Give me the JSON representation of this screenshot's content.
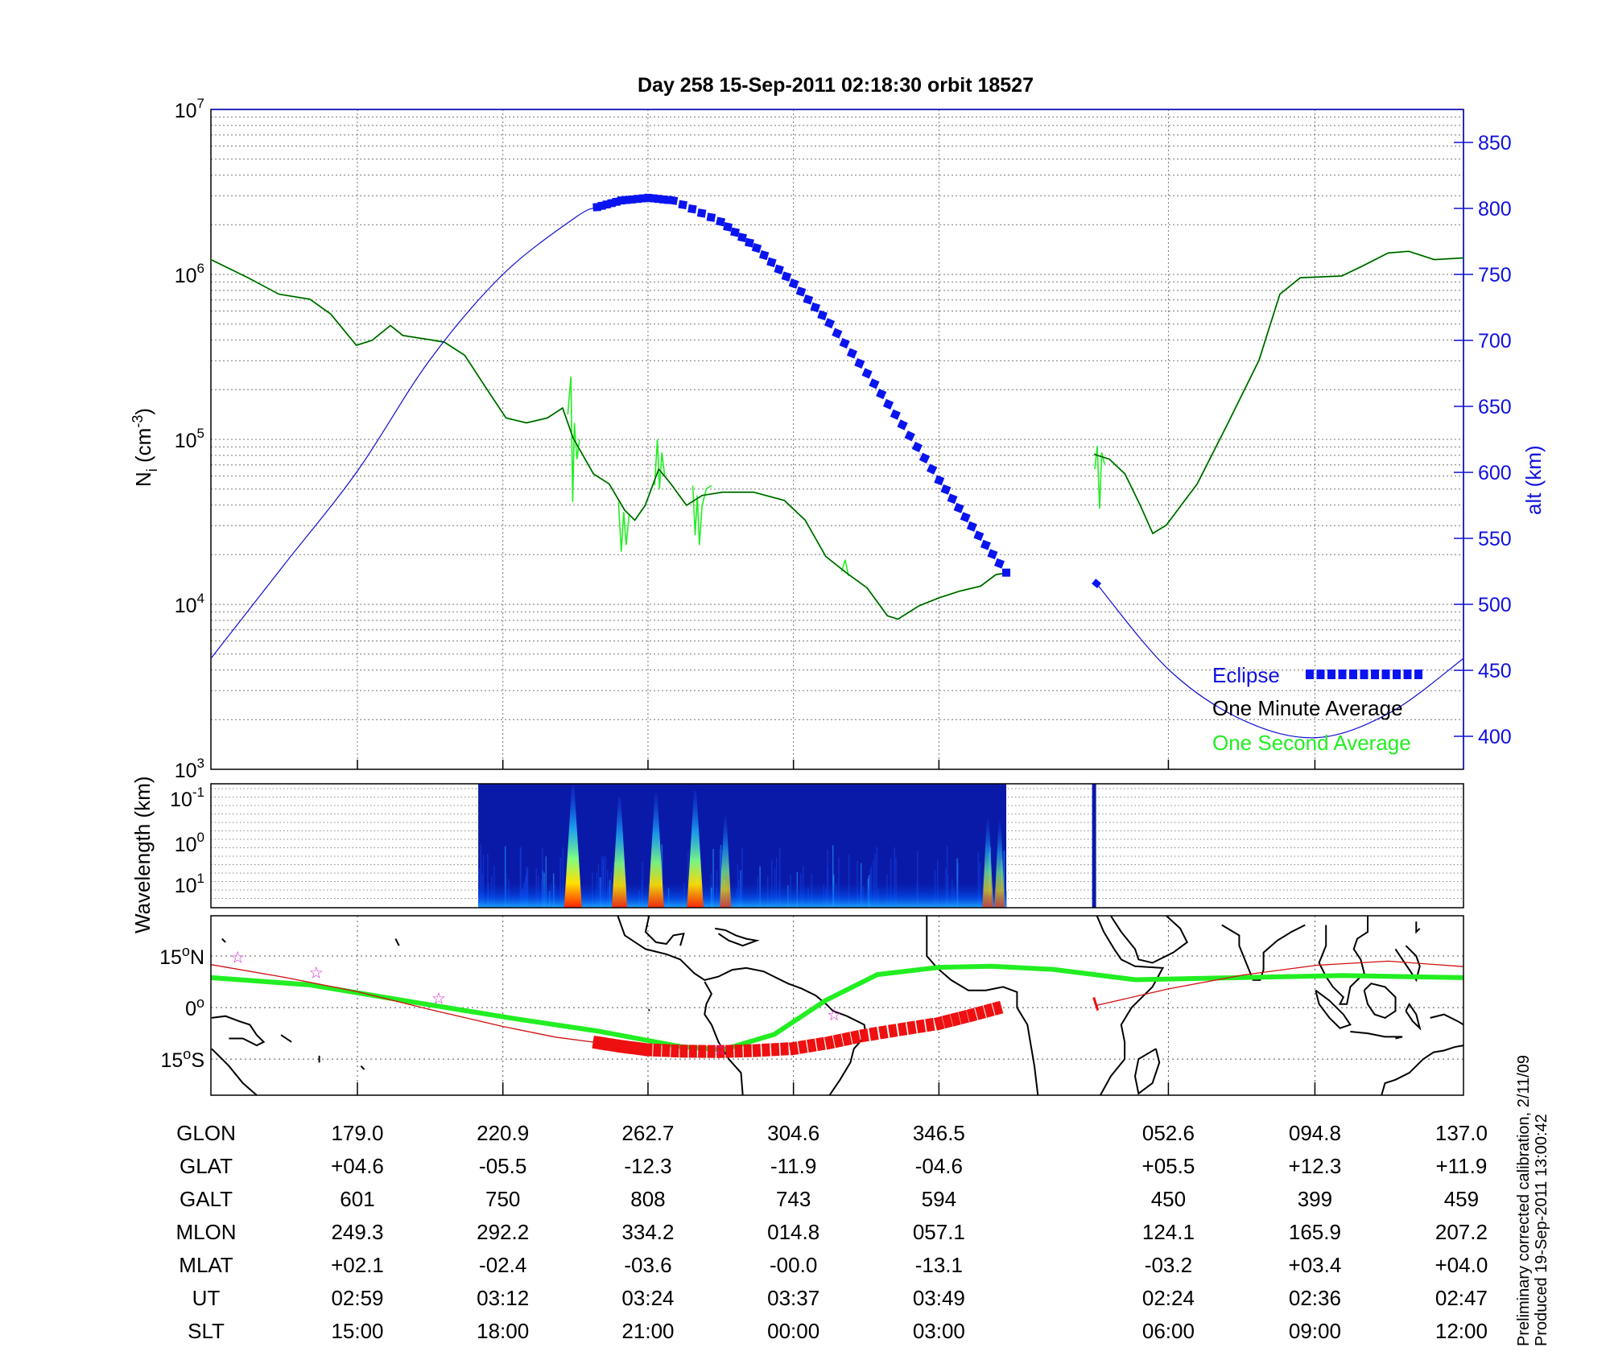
{
  "chart_data": {
    "type": "line",
    "title": "Day 258  15-Sep-2011 02:18:30   orbit 18527",
    "x_axis": {
      "quantity": "geographic longitude (unwrapped, deg)",
      "range": [
        136.8,
        497.6
      ]
    },
    "panels": {
      "density": {
        "ylabel": "N",
        "ylabel_sub": "i",
        "ylabel_unit": "(cm",
        "ylabel_exp": "-3",
        "ylabel_close": ")",
        "yscale": "log10",
        "ylim_log10": [
          3,
          7
        ],
        "ytick_labels": [
          {
            "base": "10",
            "exp": "3"
          },
          {
            "base": "10",
            "exp": "4"
          },
          {
            "base": "10",
            "exp": "5"
          },
          {
            "base": "10",
            "exp": "6"
          },
          {
            "base": "10",
            "exp": "7"
          }
        ],
        "right_ylabel": "alt (km)",
        "right_ylim": [
          375,
          875
        ],
        "right_ticks": [
          "400",
          "450",
          "500",
          "550",
          "600",
          "650",
          "700",
          "750",
          "800",
          "850"
        ],
        "series": [
          {
            "name": "One Minute Average",
            "color": "#000000",
            "segments": [
              [
                [
                  136.8,
                  6.09
                ],
                [
                  147.5,
                  5.98
                ],
                [
                  156.4,
                  5.88
                ],
                [
                  165.3,
                  5.85
                ],
                [
                  171.3,
                  5.76
                ],
                [
                  178.7,
                  5.57
                ],
                [
                  183.2,
                  5.6
                ],
                [
                  188.5,
                  5.69
                ],
                [
                  192.1,
                  5.63
                ],
                [
                  198.0,
                  5.61
                ],
                [
                  204.0,
                  5.59
                ],
                [
                  209.9,
                  5.51
                ],
                [
                  215.8,
                  5.32
                ],
                [
                  221.8,
                  5.13
                ],
                [
                  227.7,
                  5.1
                ],
                [
                  233.7,
                  5.13
                ],
                [
                  238.1,
                  5.19
                ],
                [
                  241.1,
                  5.01
                ],
                [
                  247.0,
                  4.79
                ],
                [
                  251.5,
                  4.73
                ],
                [
                  256.0,
                  4.57
                ],
                [
                  258.9,
                  4.51
                ],
                [
                  261.9,
                  4.6
                ],
                [
                  265.8,
                  4.82
                ],
                [
                  269.3,
                  4.73
                ],
                [
                  273.8,
                  4.6
                ],
                [
                  278.3,
                  4.66
                ],
                [
                  284.2,
                  4.68
                ],
                [
                  293.1,
                  4.68
                ],
                [
                  302.0,
                  4.63
                ],
                [
                  308.0,
                  4.51
                ],
                [
                  313.9,
                  4.29
                ],
                [
                  319.9,
                  4.19
                ],
                [
                  325.8,
                  4.1
                ],
                [
                  331.7,
                  3.93
                ],
                [
                  334.7,
                  3.91
                ],
                [
                  340.7,
                  3.99
                ],
                [
                  346.6,
                  4.04
                ],
                [
                  352.5,
                  4.08
                ],
                [
                  358.5,
                  4.11
                ],
                [
                  362.9,
                  4.18
                ],
                [
                  365.9,
                  4.19
                ]
              ],
              [
                [
                  391.2,
                  4.91
                ],
                [
                  395.6,
                  4.88
                ],
                [
                  400.1,
                  4.79
                ],
                [
                  404.5,
                  4.6
                ],
                [
                  408.1,
                  4.43
                ],
                [
                  412.0,
                  4.48
                ],
                [
                  420.9,
                  4.73
                ],
                [
                  429.8,
                  5.1
                ],
                [
                  438.7,
                  5.48
                ],
                [
                  444.7,
                  5.88
                ],
                [
                  450.6,
                  5.98
                ],
                [
                  462.5,
                  5.99
                ],
                [
                  468.4,
                  6.05
                ],
                [
                  475.9,
                  6.13
                ],
                [
                  481.8,
                  6.14
                ],
                [
                  489.2,
                  6.09
                ],
                [
                  497.6,
                  6.1
                ]
              ]
            ]
          },
          {
            "name": "One Second Average",
            "color": "#22ee22",
            "spikes": [
              [
                [
                  239.6,
                  5.15
                ],
                [
                  240.5,
                  5.38
                ],
                [
                  241.0,
                  4.62
                ],
                [
                  241.5,
                  5.1
                ],
                [
                  242.2,
                  4.88
                ],
                [
                  243.0,
                  5.0
                ]
              ],
              [
                [
                  254.2,
                  4.62
                ],
                [
                  255.0,
                  4.32
                ],
                [
                  255.7,
                  4.56
                ],
                [
                  256.4,
                  4.36
                ],
                [
                  257.3,
                  4.55
                ]
              ],
              [
                [
                  264.6,
                  4.72
                ],
                [
                  265.4,
                  5.0
                ],
                [
                  266.0,
                  4.7
                ],
                [
                  266.7,
                  4.92
                ],
                [
                  267.5,
                  4.78
                ]
              ],
              [
                [
                  275.6,
                  4.72
                ],
                [
                  276.3,
                  4.42
                ],
                [
                  276.9,
                  4.66
                ],
                [
                  277.5,
                  4.36
                ],
                [
                  278.3,
                  4.6
                ],
                [
                  279.5,
                  4.7
                ],
                [
                  281,
                  4.72
                ]
              ],
              [
                [
                  318.5,
                  4.2
                ],
                [
                  319.5,
                  4.27
                ],
                [
                  320.5,
                  4.17
                ]
              ],
              [
                [
                  391.4,
                  4.82
                ],
                [
                  392.1,
                  4.96
                ],
                [
                  392.8,
                  4.58
                ],
                [
                  393.4,
                  4.92
                ],
                [
                  394.2,
                  4.85
                ]
              ]
            ]
          },
          {
            "name": "alt",
            "color": "#1010d0",
            "segments": [
              [
                [
                  136.8,
                  459
                ],
                [
                  157.9,
                  530
                ],
                [
                  179.0,
                  601
                ],
                [
                  199.8,
                  685
                ],
                [
                  220.9,
                  750
                ],
                [
                  241.7,
                  793
                ],
                [
                  248.0,
                  801
                ]
              ],
              [
                [
                  391.8,
                  516
                ],
                [
                  412.9,
                  450
                ],
                [
                  434.3,
                  412
                ],
                [
                  455.4,
                  399
                ],
                [
                  476.5,
                  418
                ],
                [
                  497.6,
                  459
                ]
              ]
            ]
          },
          {
            "name": "Eclipse",
            "color": "#0a14f0",
            "points": [
              [
                248.0,
                801
              ],
              [
                255,
                806
              ],
              [
                262.8,
                808
              ],
              [
                270,
                806
              ],
              [
                283.6,
                790
              ],
              [
                294,
                770
              ],
              [
                304.7,
                743
              ],
              [
                315,
                713
              ],
              [
                325.8,
                675
              ],
              [
                336,
                636
              ],
              [
                346.6,
                594
              ],
              [
                356,
                559
              ],
              [
                365.9,
                524
              ]
            ],
            "extra_marker": [
              391.8,
              516
            ]
          }
        ],
        "legend": {
          "placement": "bottom-right",
          "items": [
            {
              "label": "Eclipse",
              "color": "#1010e0"
            },
            {
              "label": "One Minute Average",
              "color": "#000000"
            },
            {
              "label": "One Second Average",
              "color": "#22ee22"
            }
          ]
        }
      },
      "spectrogram": {
        "ylabel": "Wavelength (km)",
        "ytick_labels": [
          {
            "base": "10",
            "exp": "-1"
          },
          {
            "base": "10",
            "exp": "0"
          },
          {
            "base": "10",
            "exp": "1"
          }
        ],
        "data_lon_range": [
          213.8,
          365.9
        ],
        "extra_stripe_lon": 391.2,
        "enhancements": [
          {
            "lon": 241.1,
            "intensity": 1.0
          },
          {
            "lon": 254.5,
            "intensity": 0.8
          },
          {
            "lon": 265.0,
            "intensity": 0.85
          },
          {
            "lon": 276.3,
            "intensity": 0.9
          },
          {
            "lon": 285.0,
            "intensity": 0.45
          },
          {
            "lon": 360.6,
            "intensity": 0.4
          },
          {
            "lon": 364.0,
            "intensity": 0.35
          }
        ]
      },
      "map": {
        "ytick_labels": [
          {
            "deg": "15",
            "hemi": "N"
          },
          {
            "deg": "0",
            "hemi": ""
          },
          {
            "deg": "15",
            "hemi": "S"
          }
        ],
        "lat_range": [
          -25.5,
          26.7
        ],
        "magnetic_equator": [
          [
            136.8,
            8.7
          ],
          [
            165.3,
            6.6
          ],
          [
            201,
            0.6
          ],
          [
            224.8,
            -3.3
          ],
          [
            248.5,
            -6.9
          ],
          [
            272.3,
            -11.4
          ],
          [
            284.2,
            -12.3
          ],
          [
            299.1,
            -7.8
          ],
          [
            313.9,
            2.1
          ],
          [
            328.8,
            9.6
          ],
          [
            346.6,
            11.7
          ],
          [
            361.5,
            12
          ],
          [
            379.3,
            11.1
          ],
          [
            403.1,
            8.1
          ],
          [
            432.8,
            8.7
          ],
          [
            462.5,
            9.3
          ],
          [
            497.6,
            8.7
          ]
        ],
        "track": [
          [
            [
              136.8,
              12.5
            ],
            [
              158,
              8.8
            ],
            [
              179,
              4.6
            ],
            [
              200,
              -0.6
            ],
            [
              220.9,
              -5.5
            ],
            [
              236,
              -8.6
            ],
            [
              248,
              -10.2
            ]
          ],
          [
            [
              391.8,
              0.6
            ],
            [
              412.9,
              5.5
            ],
            [
              434.3,
              9.5
            ],
            [
              455.4,
              12.3
            ],
            [
              476,
              13.5
            ],
            [
              497.6,
              11.9
            ]
          ]
        ],
        "track_eclipse": [
          [
            248,
            -10.2
          ],
          [
            255,
            -11.3
          ],
          [
            262.8,
            -12.3
          ],
          [
            273,
            -12.7
          ],
          [
            283.6,
            -12.8
          ],
          [
            294,
            -12.5
          ],
          [
            304.7,
            -11.9
          ],
          [
            315,
            -10.2
          ],
          [
            325,
            -8.1
          ],
          [
            336,
            -6.3
          ],
          [
            346.6,
            -4.6
          ],
          [
            356,
            -2.2
          ],
          [
            365.9,
            0.5
          ]
        ],
        "stars": [
          [
            144.5,
            14.7
          ],
          [
            167.1,
            10.2
          ],
          [
            202.4,
            2.7
          ],
          [
            316.3,
            -2.1
          ],
          [
            283.4,
            -12.0
          ]
        ]
      }
    },
    "table": {
      "row_labels": [
        "GLON",
        "GLAT",
        "GALT",
        "MLON",
        "MLAT",
        "UT",
        "SLT"
      ],
      "column_lon": [
        179.0,
        220.9,
        262.7,
        304.6,
        346.5,
        412.6,
        454.8,
        497.0
      ],
      "rows": [
        [
          "179.0",
          "220.9",
          "262.7",
          "304.6",
          "346.5",
          "052.6",
          "094.8",
          "137.0"
        ],
        [
          "+04.6",
          "-05.5",
          "-12.3",
          "-11.9",
          "-04.6",
          "+05.5",
          "+12.3",
          "+11.9"
        ],
        [
          "601",
          "750",
          "808",
          "743",
          "594",
          "450",
          "399",
          "459"
        ],
        [
          "249.3",
          "292.2",
          "334.2",
          "014.8",
          "057.1",
          "124.1",
          "165.9",
          "207.2"
        ],
        [
          "+02.1",
          "-02.4",
          "-03.6",
          "-00.0",
          "-13.1",
          "-03.2",
          "+03.4",
          "+04.0"
        ],
        [
          "02:59",
          "03:12",
          "03:24",
          "03:37",
          "03:49",
          "02:24",
          "02:36",
          "02:47"
        ],
        [
          "15:00",
          "18:00",
          "21:00",
          "00:00",
          "03:00",
          "06:00",
          "09:00",
          "12:00"
        ]
      ]
    },
    "footer": {
      "line1": "Preliminary corrected calibration, 2/11/09",
      "line2": "Produced 19-Sep-2011 13:00:42"
    }
  }
}
